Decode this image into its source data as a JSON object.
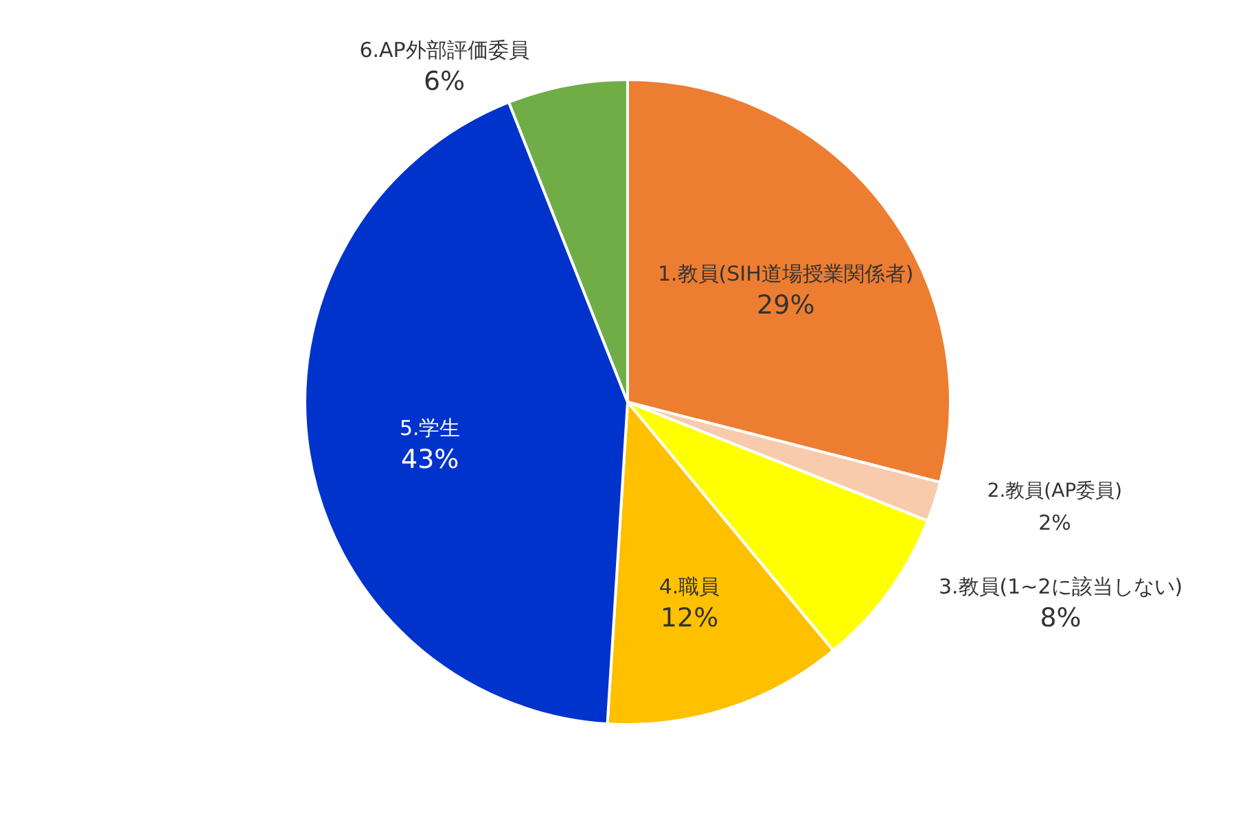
{
  "chart_data": {
    "type": "pie",
    "categories": [
      "1.教員(SIH道場授業関係者)",
      "2.教員(AP委員)",
      "3.教員(1~2に該当しない)",
      "4.職員",
      "5.学生",
      "6.AP外部評価委員"
    ],
    "values": [
      29,
      2,
      8,
      12,
      43,
      6
    ],
    "colors": [
      "#ed7d31",
      "#f8cbad",
      "#ffff00",
      "#ffc000",
      "#0033cc",
      "#70ad47"
    ],
    "value_labels": [
      "29%",
      "2%",
      "8%",
      "12%",
      "43%",
      "6%"
    ]
  }
}
